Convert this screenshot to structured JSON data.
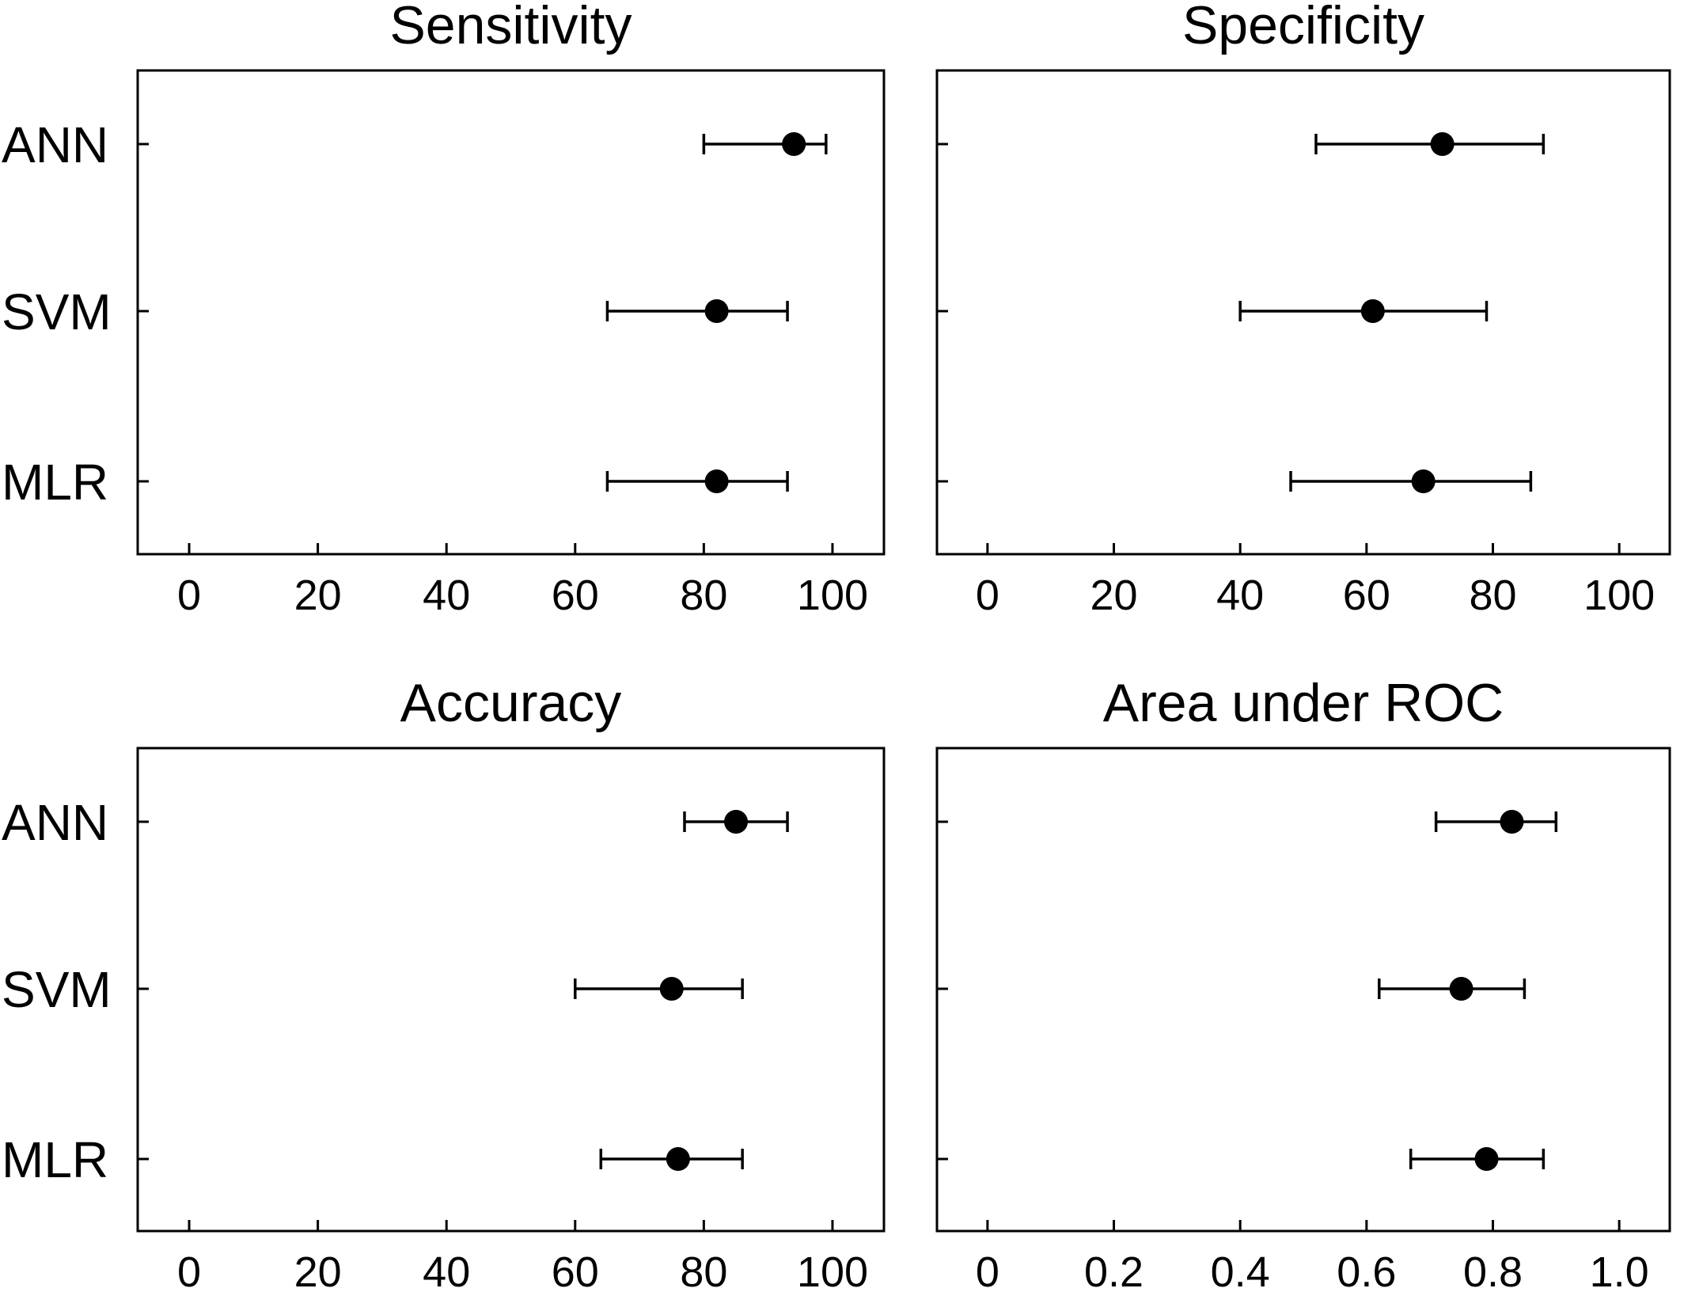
{
  "chart_data": [
    {
      "type": "scatter",
      "title": "Sensitivity",
      "categories": [
        "ANN",
        "SVM",
        "MLR"
      ],
      "values": [
        94,
        82,
        82
      ],
      "ci_low": [
        80,
        65,
        65
      ],
      "ci_high": [
        99,
        93,
        93
      ],
      "xlim": [
        -8,
        108
      ],
      "xticks": [
        0,
        20,
        40,
        60,
        80,
        100
      ],
      "xtick_labels": [
        "0",
        "20",
        "40",
        "60",
        "80",
        "100"
      ]
    },
    {
      "type": "scatter",
      "title": "Specificity",
      "categories": [
        "ANN",
        "SVM",
        "MLR"
      ],
      "values": [
        72,
        61,
        69
      ],
      "ci_low": [
        52,
        40,
        48
      ],
      "ci_high": [
        88,
        79,
        86
      ],
      "xlim": [
        -8,
        108
      ],
      "xticks": [
        0,
        20,
        40,
        60,
        80,
        100
      ],
      "xtick_labels": [
        "0",
        "20",
        "40",
        "60",
        "80",
        "100"
      ]
    },
    {
      "type": "scatter",
      "title": "Accuracy",
      "categories": [
        "ANN",
        "SVM",
        "MLR"
      ],
      "values": [
        85,
        75,
        76
      ],
      "ci_low": [
        77,
        60,
        64
      ],
      "ci_high": [
        93,
        86,
        86
      ],
      "xlim": [
        -8,
        108
      ],
      "xticks": [
        0,
        20,
        40,
        60,
        80,
        100
      ],
      "xtick_labels": [
        "0",
        "20",
        "40",
        "60",
        "80",
        "100"
      ]
    },
    {
      "type": "scatter",
      "title": "Area under ROC",
      "categories": [
        "ANN",
        "SVM",
        "MLR"
      ],
      "values": [
        0.83,
        0.75,
        0.79
      ],
      "ci_low": [
        0.71,
        0.62,
        0.67
      ],
      "ci_high": [
        0.9,
        0.85,
        0.88
      ],
      "xlim": [
        -0.08,
        1.08
      ],
      "xticks": [
        0,
        0.2,
        0.4,
        0.6,
        0.8,
        1.0
      ],
      "xtick_labels": [
        "0",
        "0.2",
        "0.4",
        "0.6",
        "0.8",
        "1.0"
      ]
    }
  ]
}
